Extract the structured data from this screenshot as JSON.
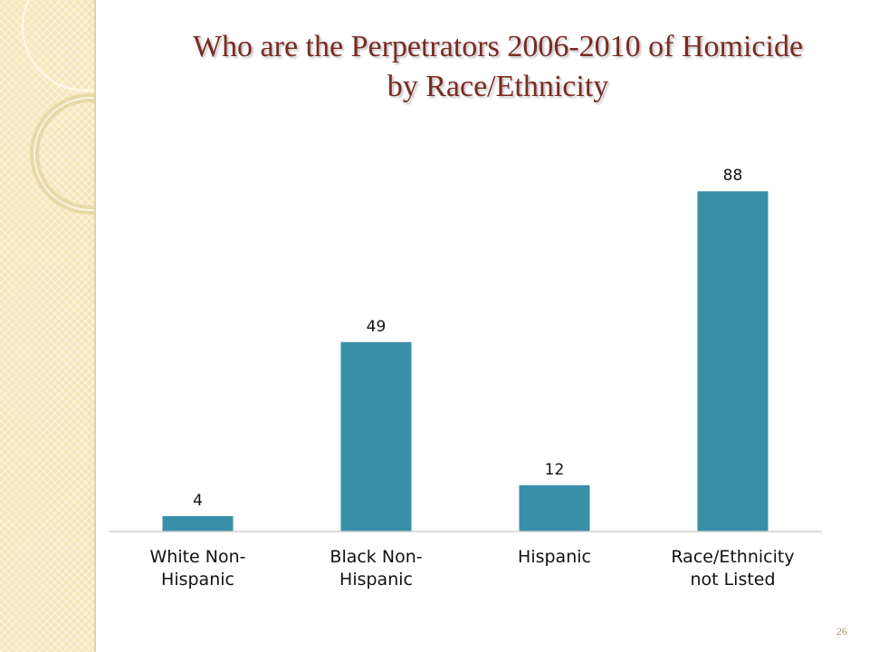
{
  "chart_data": {
    "type": "bar",
    "title": "Who are the Perpetrators 2006-2010 of Homicide by Race/Ethnicity",
    "categories": [
      "White Non-Hispanic",
      "Black Non-Hispanic",
      "Hispanic",
      "Race/Ethnicity not Listed"
    ],
    "values": [
      4,
      49,
      12,
      88
    ],
    "color": "#3a8fa8",
    "ylim": [
      0,
      100
    ]
  },
  "page_number": "26"
}
